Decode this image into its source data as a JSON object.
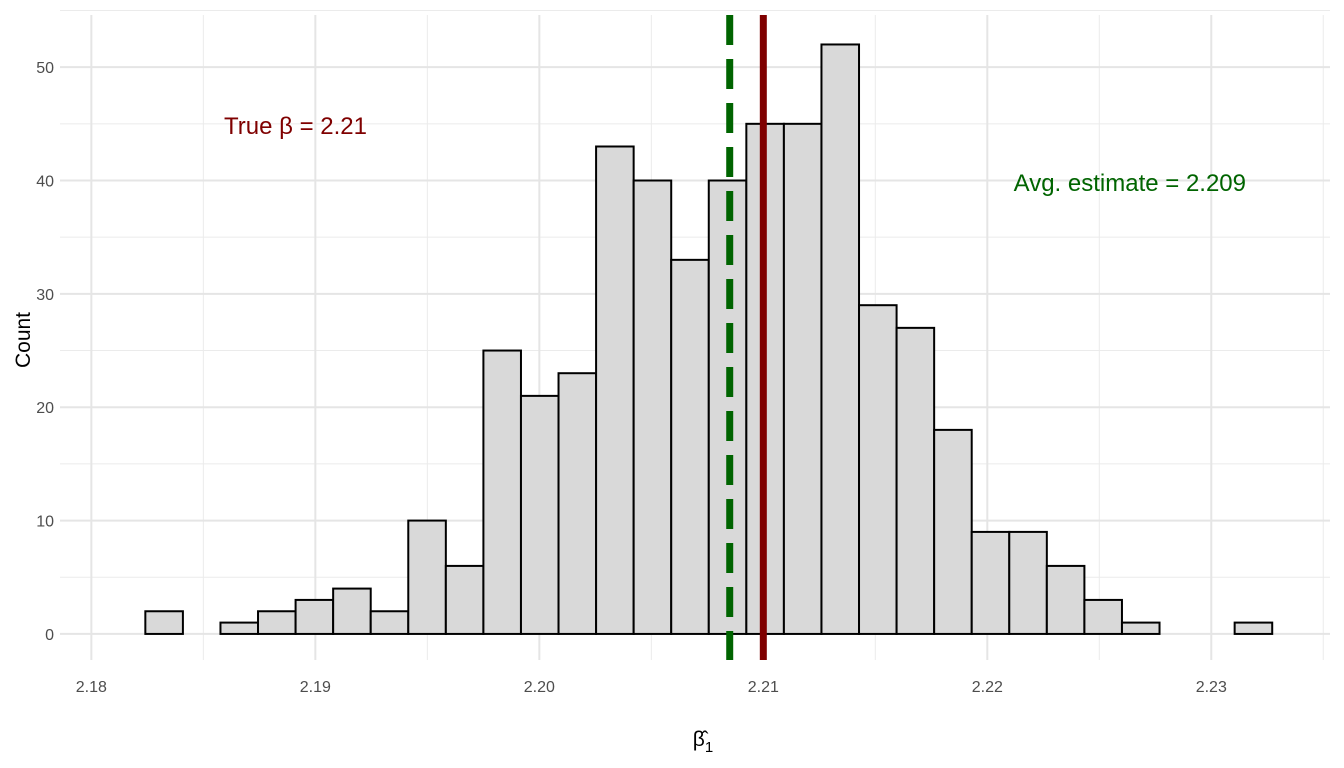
{
  "chart_data": {
    "type": "bar",
    "subtype": "histogram",
    "xlabel": "β̂",
    "xlabel_sub": "1",
    "ylabel": "Count",
    "xlim": [
      2.1786,
      2.2353
    ],
    "ylim": [
      -2.3,
      54.6
    ],
    "x_ticks": [
      "2.18",
      "2.19",
      "2.20",
      "2.21",
      "2.22",
      "2.23"
    ],
    "x_tick_values": [
      2.18,
      2.19,
      2.2,
      2.21,
      2.22,
      2.23
    ],
    "y_ticks": [
      "0",
      "10",
      "20",
      "30",
      "40",
      "50"
    ],
    "y_tick_values": [
      0,
      10,
      20,
      30,
      40,
      50
    ],
    "bin_start": 2.18241,
    "bin_width": 0.001677,
    "counts": [
      2,
      0,
      1,
      2,
      3,
      4,
      2,
      10,
      6,
      25,
      21,
      23,
      43,
      40,
      33,
      40,
      45,
      45,
      52,
      29,
      27,
      18,
      9,
      9,
      6,
      3,
      1,
      0,
      0,
      1
    ],
    "true_value": 2.21,
    "avg_estimate": 2.2085,
    "annotations": {
      "true_label": "True β = 2.21",
      "avg_label": "Avg. estimate = 2.209"
    },
    "grid": true,
    "colors": {
      "fill": "#d9d9d9",
      "stroke": "#000000",
      "true": "#7f0000",
      "avg": "#006400",
      "grid": "#ebebeb"
    }
  }
}
